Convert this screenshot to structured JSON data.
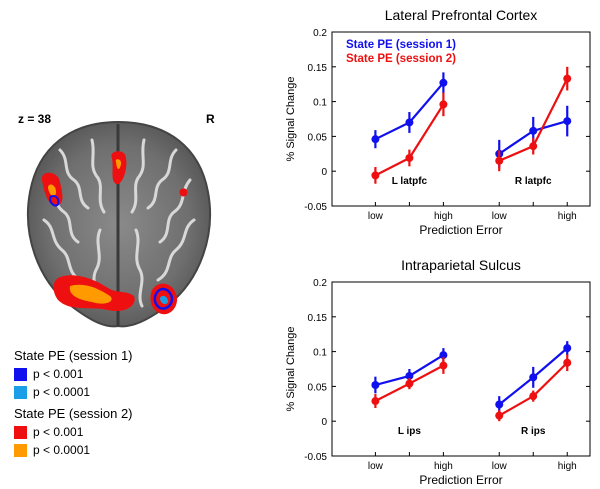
{
  "brain": {
    "slice_label": "z = 38",
    "side_label": "R"
  },
  "legend": {
    "groups": [
      {
        "title": "State PE (session 1)",
        "items": [
          {
            "label": "p < 0.001",
            "color": "#1010ee"
          },
          {
            "label": "p < 0.0001",
            "color": "#1a9ee8"
          }
        ]
      },
      {
        "title": "State PE (session 2)",
        "items": [
          {
            "label": "p < 0.001",
            "color": "#ee1010"
          },
          {
            "label": "p < 0.0001",
            "color": "#ff9a00"
          }
        ]
      }
    ]
  },
  "chart_data": [
    {
      "type": "line",
      "title": "Lateral Prefrontal Cortex",
      "xlabel": "Prediction Error",
      "ylabel": "% Signal Change",
      "ylim": [
        -0.05,
        0.2
      ],
      "yticks": [
        "0.2",
        "0.15",
        "0.1",
        "0.05",
        "0",
        "-0.05"
      ],
      "ytick_values": [
        0.2,
        0.15,
        0.1,
        0.05,
        0,
        -0.05
      ],
      "groups": [
        {
          "label": "L latpfc",
          "categories": [
            "low",
            "",
            "high"
          ]
        },
        {
          "label": "R latpfc",
          "categories": [
            "low",
            "",
            "high"
          ]
        }
      ],
      "legend": {
        "placement": "top-left",
        "show": true
      },
      "series": [
        {
          "name": "State PE (session 1)",
          "color": "#1010ee",
          "groups": [
            [
              0.046,
              0.07,
              0.127
            ],
            [
              0.025,
              0.058,
              0.072
            ]
          ],
          "errors": [
            [
              0.013,
              0.015,
              0.015
            ],
            [
              0.02,
              0.02,
              0.022
            ]
          ]
        },
        {
          "name": "State PE (session 2)",
          "color": "#ee1010",
          "groups": [
            [
              -0.006,
              0.019,
              0.096
            ],
            [
              0.015,
              0.036,
              0.133
            ]
          ],
          "errors": [
            [
              0.012,
              0.012,
              0.017
            ],
            [
              0.015,
              0.012,
              0.017
            ]
          ]
        }
      ]
    },
    {
      "type": "line",
      "title": "Intraparietal Sulcus",
      "xlabel": "Prediction Error",
      "ylabel": "% Signal Change",
      "ylim": [
        -0.05,
        0.2
      ],
      "yticks": [
        "0.2",
        "0.15",
        "0.1",
        "0.05",
        "0",
        "-0.05"
      ],
      "ytick_values": [
        0.2,
        0.15,
        0.1,
        0.05,
        0,
        -0.05
      ],
      "groups": [
        {
          "label": "L ips",
          "categories": [
            "low",
            "",
            "high"
          ]
        },
        {
          "label": "R ips",
          "categories": [
            "low",
            "",
            "high"
          ]
        }
      ],
      "legend": {
        "show": false
      },
      "series": [
        {
          "name": "State PE (session 1)",
          "color": "#1010ee",
          "groups": [
            [
              0.052,
              0.065,
              0.095
            ],
            [
              0.024,
              0.063,
              0.105
            ]
          ],
          "errors": [
            [
              0.012,
              0.01,
              0.01
            ],
            [
              0.012,
              0.015,
              0.01
            ]
          ]
        },
        {
          "name": "State PE (session 2)",
          "color": "#ee1010",
          "groups": [
            [
              0.029,
              0.054,
              0.08
            ],
            [
              0.008,
              0.036,
              0.084
            ]
          ],
          "errors": [
            [
              0.01,
              0.008,
              0.012
            ],
            [
              0.008,
              0.008,
              0.012
            ]
          ]
        }
      ]
    }
  ]
}
